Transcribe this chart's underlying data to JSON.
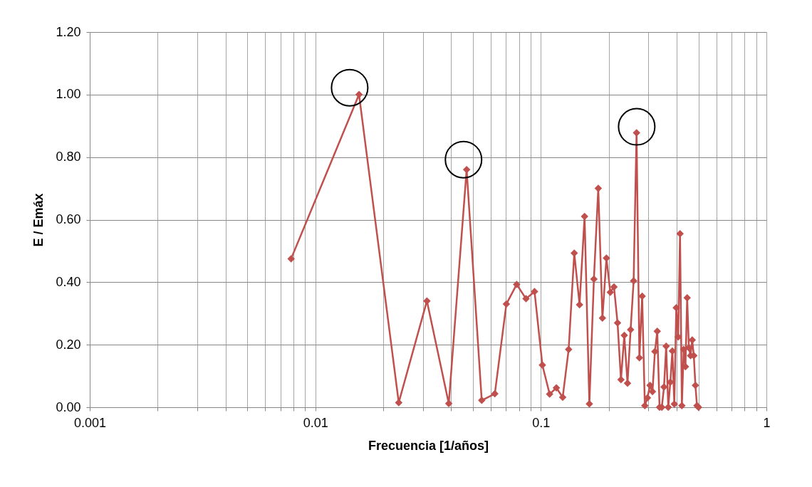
{
  "chart_data": {
    "type": "line",
    "xlabel": "Frecuencia [1/años]",
    "ylabel": "E / Emáx",
    "log": "x",
    "grid": true,
    "marker": "diamond",
    "line_style": "solid",
    "xlim": [
      0.001,
      1
    ],
    "ylim": [
      0,
      1.2
    ],
    "xticks": [
      {
        "value": 0.001,
        "label": "0.001"
      },
      {
        "value": 0.002,
        "label": null
      },
      {
        "value": 0.003,
        "label": null
      },
      {
        "value": 0.004,
        "label": null
      },
      {
        "value": 0.005,
        "label": null
      },
      {
        "value": 0.006,
        "label": null
      },
      {
        "value": 0.007,
        "label": null
      },
      {
        "value": 0.008,
        "label": null
      },
      {
        "value": 0.009,
        "label": null
      },
      {
        "value": 0.01,
        "label": "0.01"
      },
      {
        "value": 0.02,
        "label": null
      },
      {
        "value": 0.03,
        "label": null
      },
      {
        "value": 0.04,
        "label": null
      },
      {
        "value": 0.05,
        "label": null
      },
      {
        "value": 0.06,
        "label": null
      },
      {
        "value": 0.07,
        "label": null
      },
      {
        "value": 0.08,
        "label": null
      },
      {
        "value": 0.09,
        "label": null
      },
      {
        "value": 0.1,
        "label": "0.1"
      },
      {
        "value": 0.2,
        "label": null
      },
      {
        "value": 0.3,
        "label": null
      },
      {
        "value": 0.4,
        "label": null
      },
      {
        "value": 0.5,
        "label": null
      },
      {
        "value": 0.6,
        "label": null
      },
      {
        "value": 0.7,
        "label": null
      },
      {
        "value": 0.8,
        "label": null
      },
      {
        "value": 0.9,
        "label": null
      },
      {
        "value": 1,
        "label": "1"
      }
    ],
    "yticks": [
      {
        "value": 0,
        "label": "0.00"
      },
      {
        "value": 0.2,
        "label": "0.20"
      },
      {
        "value": 0.4,
        "label": "0.40"
      },
      {
        "value": 0.6,
        "label": "0.60"
      },
      {
        "value": 0.8,
        "label": "0.80"
      },
      {
        "value": 1.0,
        "label": "1.00"
      },
      {
        "value": 1.2,
        "label": "1.20"
      }
    ],
    "series": [
      {
        "color": "#c0504d",
        "x": [
          0.0078125,
          0.015625,
          0.0234375,
          0.03125,
          0.0390625,
          0.046875,
          0.0546875,
          0.0625,
          0.0703125,
          0.078125,
          0.0859375,
          0.09375,
          0.1015625,
          0.109375,
          0.1171875,
          0.125,
          0.1328125,
          0.140625,
          0.1484375,
          0.15625,
          0.1640625,
          0.171875,
          0.1796875,
          0.1875,
          0.1953125,
          0.203125,
          0.2109375,
          0.21875,
          0.2265625,
          0.234375,
          0.2421875,
          0.25,
          0.2578125,
          0.265625,
          0.2734375,
          0.28125,
          0.2890625,
          0.296875,
          0.3046875,
          0.3125,
          0.3203125,
          0.328125,
          0.3359375,
          0.34375,
          0.3515625,
          0.359375,
          0.3671875,
          0.375,
          0.3828125,
          0.390625,
          0.3984375,
          0.40625,
          0.4140625,
          0.421875,
          0.4296875,
          0.4375,
          0.4453125,
          0.453125,
          0.4609375,
          0.46875,
          0.4765625,
          0.484375,
          0.4921875,
          0.5
        ],
        "values": [
          0.475,
          1.0,
          0.015,
          0.34,
          0.012,
          0.76,
          0.022,
          0.043,
          0.33,
          0.393,
          0.347,
          0.37,
          0.135,
          0.042,
          0.062,
          0.032,
          0.185,
          0.493,
          0.328,
          0.61,
          0.011,
          0.41,
          0.7,
          0.285,
          0.477,
          0.368,
          0.385,
          0.27,
          0.088,
          0.23,
          0.077,
          0.248,
          0.404,
          0.878,
          0.158,
          0.355,
          0.005,
          0.03,
          0.07,
          0.05,
          0.178,
          0.243,
          0.0,
          0.0,
          0.065,
          0.195,
          0.0,
          0.08,
          0.18,
          0.01,
          0.318,
          0.225,
          0.555,
          0.005,
          0.185,
          0.13,
          0.35,
          0.19,
          0.165,
          0.215,
          0.165,
          0.07,
          0.005,
          0.0
        ]
      },
      {
        "type": "scatter",
        "color": "#000000",
        "marker": "circle",
        "x": [
          0.0142,
          0.0454,
          0.266
        ],
        "values": [
          1.022,
          0.792,
          0.897
        ]
      }
    ]
  }
}
